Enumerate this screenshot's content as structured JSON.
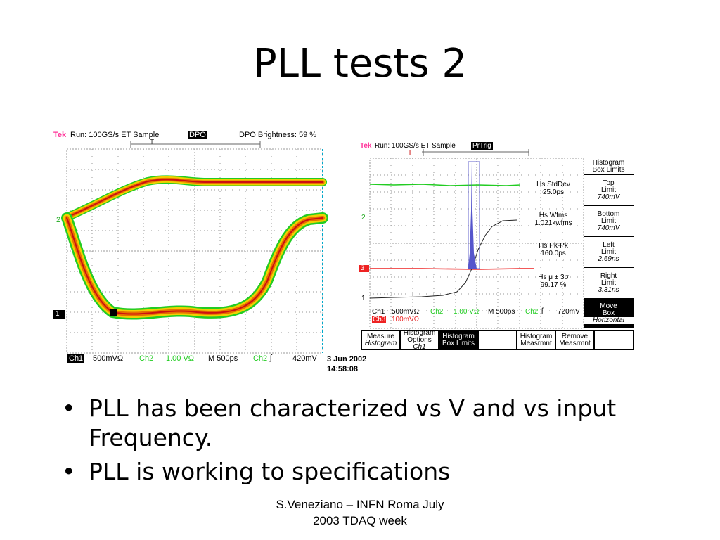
{
  "slide": {
    "title": "PLL tests 2",
    "bullets": [
      "PLL has been characterized vs V and vs input Frequency.",
      "PLL is working to specifications"
    ],
    "footer": {
      "line1": "S.Veneziano – INFN Roma July",
      "line2": "2003 TDAQ week"
    }
  },
  "scope1": {
    "brand": "Tek",
    "run": "Run: 100GS/s ET  Sample",
    "mode": "DPO",
    "brightness": "DPO Brightness: 59 %",
    "trigger_marker": "T",
    "ch2_marker": "2",
    "ch1_marker": "1",
    "bottom": {
      "ch1": "Ch1",
      "ch1_scale": "500mVΩ",
      "ch2": "Ch2",
      "ch2_scale": "1.00 VΩ",
      "timebase": "M  500ps",
      "trig_ch": "Ch2",
      "trig_level": "420mV"
    },
    "date": "3 Jun 2002",
    "time": "14:58:08"
  },
  "scope2": {
    "brand": "Tek",
    "run": "Run: 100GS/s ET  Sample",
    "mode": "PrTrig",
    "trigger_marker": "T",
    "ch2_marker": "2",
    "ch3_marker": "3",
    "ch1_marker": "1",
    "measurements": [
      {
        "label": "Hs StdDev",
        "value": "25.0ps"
      },
      {
        "label": "Hs Wfms",
        "value": "1.021kwfms"
      },
      {
        "label": "Hs Pk-Pk",
        "value": "160.0ps"
      },
      {
        "label": "Hs μ ± 3σ",
        "value": "99.17 %"
      }
    ],
    "bottom": {
      "ch1": "Ch1",
      "ch1_scale": "500mVΩ",
      "ch2": "Ch2",
      "ch2_scale": "1.00 VΩ",
      "timebase": "M  500ps",
      "trig_ch": "Ch2",
      "trig_level": "720mV",
      "ch3": "Ch3",
      "ch3_scale": "100mVΩ"
    },
    "side_menu": {
      "header1": "Histogram",
      "header2": "Box Limits",
      "buttons": [
        {
          "l1": "Top",
          "l2": "Limit",
          "val": "740mV"
        },
        {
          "l1": "Bottom",
          "l2": "Limit",
          "val": "740mV"
        },
        {
          "l1": "Left",
          "l2": "Limit",
          "val": "2.69ns"
        },
        {
          "l1": "Right",
          "l2": "Limit",
          "val": "3.31ns"
        },
        {
          "l1": "Move",
          "l2": "Box",
          "val": "Horizontal"
        }
      ]
    },
    "bottom_menu": [
      {
        "l1": "Measure",
        "l2": "Histogram"
      },
      {
        "l1": "Histogram",
        "l2": "Options",
        "l3": "Ch1"
      },
      {
        "l1": "Histogram",
        "l2": "Box Limits"
      },
      {
        "l1": "Histogram",
        "l2": "Measrmnt"
      },
      {
        "l1": "Remove",
        "l2": "Measrmnt"
      }
    ]
  },
  "colors": {
    "ch1_trace": "#e8a000",
    "ch2_trace": "#22cc22",
    "ch3_trace": "#ee2222",
    "histogram": "#5555cc",
    "grid": "#888888",
    "cyan": "#00aacc",
    "brand": "#ff3399"
  }
}
